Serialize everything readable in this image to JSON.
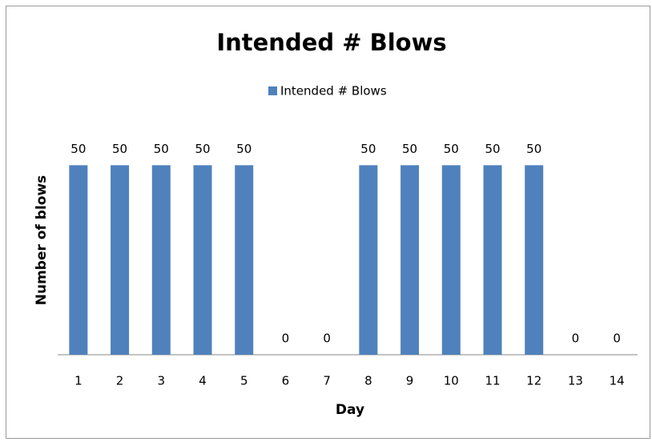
{
  "chart_data": {
    "type": "bar",
    "title": "Intended # Blows",
    "x_label": "Day",
    "y_label": "Number of blows",
    "categories": [
      "1",
      "2",
      "3",
      "4",
      "5",
      "6",
      "7",
      "8",
      "9",
      "10",
      "11",
      "12",
      "13",
      "14"
    ],
    "series": [
      {
        "name": "Intended # Blows",
        "color": "#4f81bd",
        "values": [
          50,
          50,
          50,
          50,
          50,
          0,
          0,
          50,
          50,
          50,
          50,
          50,
          0,
          0
        ]
      }
    ],
    "ylim": [
      0,
      60
    ],
    "legend": "top"
  }
}
